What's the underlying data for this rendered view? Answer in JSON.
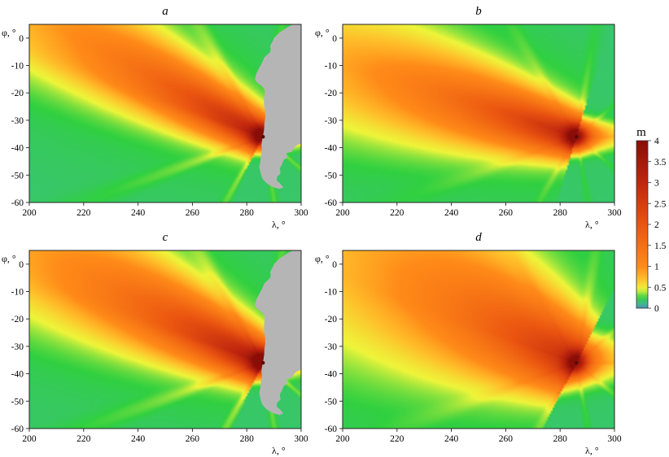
{
  "chart_data": [
    {
      "type": "heatmap",
      "panel_label": "a",
      "xlabel": "λ, °",
      "ylabel": "φ, °",
      "xlim": [
        200,
        300
      ],
      "ylim": [
        -60,
        5
      ],
      "xticks": [
        200,
        220,
        240,
        260,
        280,
        300
      ],
      "yticks": [
        0,
        -10,
        -20,
        -30,
        -40,
        -50,
        -60
      ],
      "source_lon": 286,
      "source_lat": -36,
      "beam_lat_at_200": 10,
      "beam_width_deg": 6,
      "peak_m": 2.8,
      "fan": 0.45,
      "land_mask": true
    },
    {
      "type": "heatmap",
      "panel_label": "b",
      "xlabel": "λ, °",
      "ylabel": "φ, °",
      "xlim": [
        200,
        300
      ],
      "ylim": [
        -60,
        5
      ],
      "xticks": [
        200,
        220,
        240,
        260,
        280,
        300
      ],
      "yticks": [
        0,
        -10,
        -20,
        -30,
        -40,
        -50,
        -60
      ],
      "source_lon": 286,
      "source_lat": -36,
      "beam_lat_at_200": -10,
      "beam_width_deg": 7,
      "peak_m": 2.6,
      "fan": 0.25,
      "land_mask": false
    },
    {
      "type": "heatmap",
      "panel_label": "c",
      "xlabel": "λ, °",
      "ylabel": "φ, °",
      "xlim": [
        200,
        300
      ],
      "ylim": [
        -60,
        5
      ],
      "xticks": [
        200,
        220,
        240,
        260,
        280,
        300
      ],
      "yticks": [
        0,
        -10,
        -20,
        -30,
        -40,
        -50,
        -60
      ],
      "source_lon": 286,
      "source_lat": -36,
      "beam_lat_at_200": 6,
      "beam_width_deg": 7,
      "peak_m": 3.0,
      "fan": 0.5,
      "land_mask": true
    },
    {
      "type": "heatmap",
      "panel_label": "d",
      "xlabel": "λ, °",
      "ylabel": "φ, °",
      "xlim": [
        200,
        300
      ],
      "ylim": [
        -60,
        5
      ],
      "xticks": [
        200,
        220,
        240,
        260,
        280,
        300
      ],
      "yticks": [
        0,
        -10,
        -20,
        -30,
        -40,
        -50,
        -60
      ],
      "source_lon": 286,
      "source_lat": -36,
      "beam_lat_at_200": 8,
      "beam_width_deg": 11,
      "peak_m": 2.4,
      "fan": 0.3,
      "land_mask": false
    }
  ],
  "colorbar": {
    "unit": "m",
    "ticks": [
      4,
      3.5,
      3,
      2.5,
      2,
      1.5,
      1,
      0.5,
      0
    ],
    "stops": [
      {
        "value": 0,
        "color": "#4f8fb8"
      },
      {
        "value": 0.12,
        "color": "#3fbf8a"
      },
      {
        "value": 0.25,
        "color": "#30d040"
      },
      {
        "value": 0.45,
        "color": "#eef53a"
      },
      {
        "value": 0.7,
        "color": "#ffbe2a"
      },
      {
        "value": 1.0,
        "color": "#ff8a18"
      },
      {
        "value": 2.0,
        "color": "#ea5410"
      },
      {
        "value": 3.0,
        "color": "#c0260e"
      },
      {
        "value": 4.0,
        "color": "#8a0d08"
      }
    ]
  },
  "land_color": "#b5b5b5"
}
